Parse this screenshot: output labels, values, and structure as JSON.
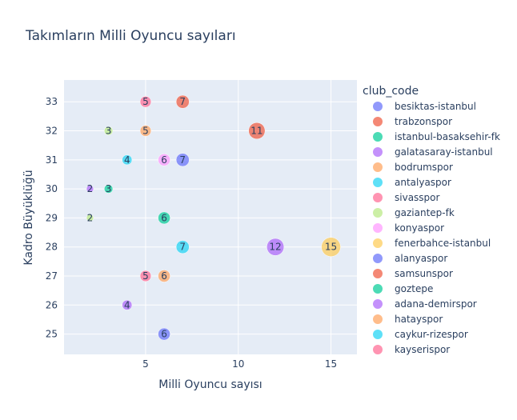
{
  "chart_data": {
    "type": "scatter",
    "title": "Takımların Milli Oyuncu sayıları",
    "xlabel": "Milli Oyuncu sayısı",
    "ylabel": "Kadro Büyüklüğü",
    "xlim": [
      0.6,
      16.4
    ],
    "ylim": [
      24.3,
      33.75
    ],
    "xticks": [
      5,
      10,
      15
    ],
    "yticks": [
      25,
      26,
      27,
      28,
      29,
      30,
      31,
      32,
      33
    ],
    "grid": true,
    "legend_title": "club_code",
    "legend_position": "right",
    "series": [
      {
        "name": "besiktas-istanbul",
        "color": "#636efa",
        "x": 7,
        "y": 31
      },
      {
        "name": "trabzonspor",
        "color": "#EF553B",
        "x": 7,
        "y": 33
      },
      {
        "name": "istanbul-basaksehir-fk",
        "color": "#00cc96",
        "x": 3,
        "y": 30
      },
      {
        "name": "galatasaray-istanbul",
        "color": "#ab63fa",
        "x": 2,
        "y": 30
      },
      {
        "name": "bodrumspor",
        "color": "#FFA15A",
        "x": 5,
        "y": 32
      },
      {
        "name": "antalyaspor",
        "color": "#19d3f3",
        "x": 4,
        "y": 31
      },
      {
        "name": "sivasspor",
        "color": "#FF6692",
        "x": 5,
        "y": 33
      },
      {
        "name": "gaziantep-fk",
        "color": "#B6E880",
        "x": 2,
        "y": 29
      },
      {
        "name": "konyaspor",
        "color": "#FF97FF",
        "x": 6,
        "y": 31
      },
      {
        "name": "fenerbahce-istanbul",
        "color": "#FECB52",
        "x": 15,
        "y": 28
      },
      {
        "name": "alanyaspor",
        "color": "#636efa",
        "x": 6,
        "y": 25
      },
      {
        "name": "samsunspor",
        "color": "#EF553B",
        "x": 11,
        "y": 32
      },
      {
        "name": "goztepe",
        "color": "#00cc96",
        "x": 6,
        "y": 29
      },
      {
        "name": "adana-demirspor",
        "color": "#ab63fa",
        "x": 12,
        "y": 28
      },
      {
        "name": "hatayspor",
        "color": "#FFA15A",
        "x": 6,
        "y": 27
      },
      {
        "name": "caykur-rizespor",
        "color": "#19d3f3",
        "x": 7,
        "y": 28
      },
      {
        "name": "kayserispor",
        "color": "#FF6692",
        "x": 5,
        "y": 27
      }
    ],
    "extra_points": [
      {
        "series": "gaziantep-fk",
        "x": 3,
        "y": 32
      },
      {
        "series": "galatasaray-istanbul",
        "x": 4,
        "y": 26
      }
    ]
  }
}
